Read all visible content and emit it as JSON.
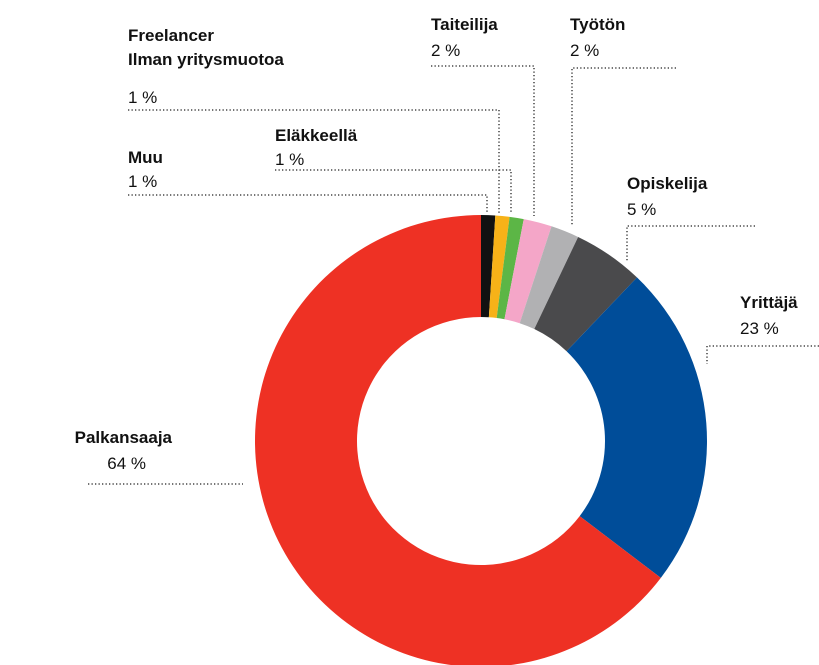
{
  "chart_data": {
    "type": "donut",
    "categories": [
      "Muu",
      "Freelancer\nIlman yritysmuotoa",
      "Eläkkeellä",
      "Taiteilija",
      "Työtön",
      "Opiskelija",
      "Yrittäjä",
      "Palkansaaja"
    ],
    "values": [
      1,
      1,
      1,
      2,
      2,
      5,
      23,
      64
    ],
    "value_labels": [
      "1 %",
      "1 %",
      "1 %",
      "2 %",
      "2 %",
      "5 %",
      "23 %",
      "64 %"
    ],
    "colors": [
      "#111111",
      "#f7b218",
      "#5cb646",
      "#f4a6c8",
      "#b1b1b3",
      "#4a4a4c",
      "#004d99",
      "#ee3124"
    ]
  }
}
